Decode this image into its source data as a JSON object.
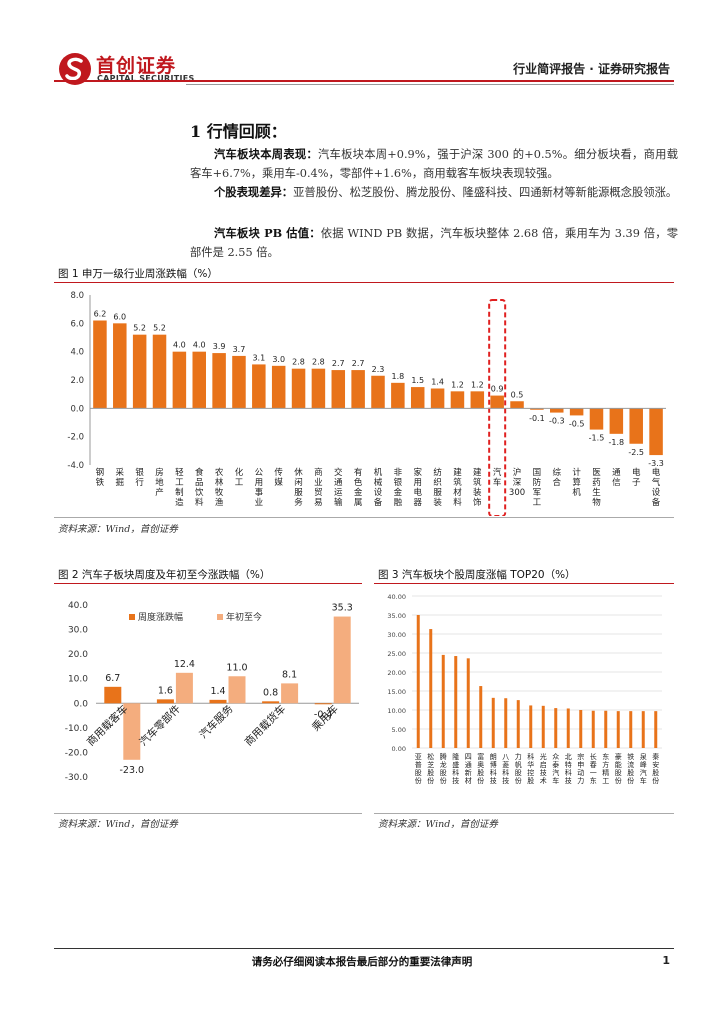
{
  "header": {
    "company_cn": "首创证券",
    "company_en": "CAPITAL SECURITIES",
    "report_type": "行业简评报告 · 证券研究报告",
    "brand_color": "#c0181e"
  },
  "section": {
    "title": "1 行情回顾：",
    "paragraphs": [
      {
        "lead": "汽车板块本周表现：",
        "text": "汽车板块本周+0.9%，强于沪深 300 的+0.5%。细分板块看，商用载客车+6.7%，乘用车-0.4%，零部件+1.6%，商用载客车板块表现较强。"
      },
      {
        "lead": "个股表现差异：",
        "text": "亚普股份、松芝股份、腾龙股份、隆盛科技、四通新材等新能源概念股领涨。"
      },
      {
        "lead": "汽车板块 PB 估值：",
        "text": "依据 WIND PB 数据，汽车板块整体 2.68 倍，乘用车为 3.39 倍，零部件是 2.55 倍。"
      }
    ]
  },
  "figures": {
    "fig1_title": "图 1 申万一级行业周涨跌幅（%）",
    "fig2_title": "图 2 汽车子板块周度及年初至今涨跌幅（%）",
    "fig3_title": "图 3 汽车板块个股周度涨幅 TOP20（%）",
    "source": "资料来源：Wind，首创证券"
  },
  "chart_data": [
    {
      "type": "bar",
      "title": "申万一级行业周涨跌幅（%）",
      "categories": [
        "钢铁",
        "采掘",
        "银行",
        "房地产",
        "轻工制造",
        "食品饮料",
        "农林牧渔",
        "化工",
        "公用事业",
        "传媒",
        "休闲服务",
        "商业贸易",
        "交通运输",
        "有色金属",
        "机械设备",
        "非银金融",
        "家用电器",
        "纺织服装",
        "建筑材料",
        "建筑装饰",
        "汽车",
        "沪深300",
        "国防军工",
        "综合",
        "计算机",
        "医药生物",
        "通信",
        "电子",
        "电气设备"
      ],
      "values": [
        6.2,
        6.0,
        5.2,
        5.2,
        4.0,
        4.0,
        3.9,
        3.7,
        3.1,
        3.0,
        2.8,
        2.8,
        2.7,
        2.7,
        2.3,
        1.8,
        1.5,
        1.4,
        1.2,
        1.2,
        0.9,
        0.5,
        -0.1,
        -0.3,
        -0.5,
        -1.5,
        -1.8,
        -2.5,
        -3.3
      ],
      "highlight": "汽车",
      "ylim": [
        -4.0,
        8.0
      ],
      "yticks": [
        "8.0",
        "6.0",
        "4.0",
        "2.0",
        "0.0",
        "-2.0",
        "-4.0"
      ],
      "color": "#e8731a"
    },
    {
      "type": "bar",
      "title": "汽车子板块周度及年初至今涨跌幅（%）",
      "categories": [
        "商用载客车",
        "汽车零部件",
        "汽车服务",
        "商用载货车",
        "乘用车"
      ],
      "series": [
        {
          "name": "周度涨跌幅",
          "values": [
            6.7,
            1.6,
            1.4,
            0.8,
            -0.4
          ],
          "color": "#e8731a"
        },
        {
          "name": "年初至今",
          "values": [
            -23.0,
            12.4,
            11.0,
            8.1,
            35.3
          ],
          "color": "#f4ad7e"
        }
      ],
      "ylim": [
        -30.0,
        40.0
      ],
      "yticks": [
        "40.0",
        "30.0",
        "20.0",
        "10.0",
        "0.0",
        "-10.0",
        "-20.0",
        "-30.0"
      ]
    },
    {
      "type": "bar",
      "title": "汽车板块个股周度涨幅 TOP20（%）",
      "categories": [
        "亚普股份",
        "松芝股份",
        "腾龙股份",
        "隆盛科技",
        "四通新材",
        "富奥股份",
        "朗博科技",
        "八菱科技",
        "力帆股份",
        "科华控股",
        "光启技术",
        "众泰汽车",
        "北特科技",
        "宗申动力",
        "长春一东",
        "东方精工",
        "豪能股份",
        "铁流股份",
        "泉峰汽车",
        "秦安股份"
      ],
      "values": [
        35.0,
        31.3,
        24.5,
        24.2,
        23.6,
        16.3,
        13.2,
        13.1,
        12.6,
        11.2,
        11.1,
        10.5,
        10.4,
        10.0,
        9.8,
        9.8,
        9.7,
        9.7,
        9.7,
        9.7
      ],
      "ylim": [
        0,
        40
      ],
      "yticks": [
        "40.00",
        "35.00",
        "30.00",
        "25.00",
        "20.00",
        "15.00",
        "10.00",
        "5.00",
        "0.00"
      ],
      "color": "#e8731a"
    }
  ],
  "footer": {
    "disclaimer": "请务必仔细阅读本报告最后部分的重要法律声明",
    "page": "1"
  }
}
